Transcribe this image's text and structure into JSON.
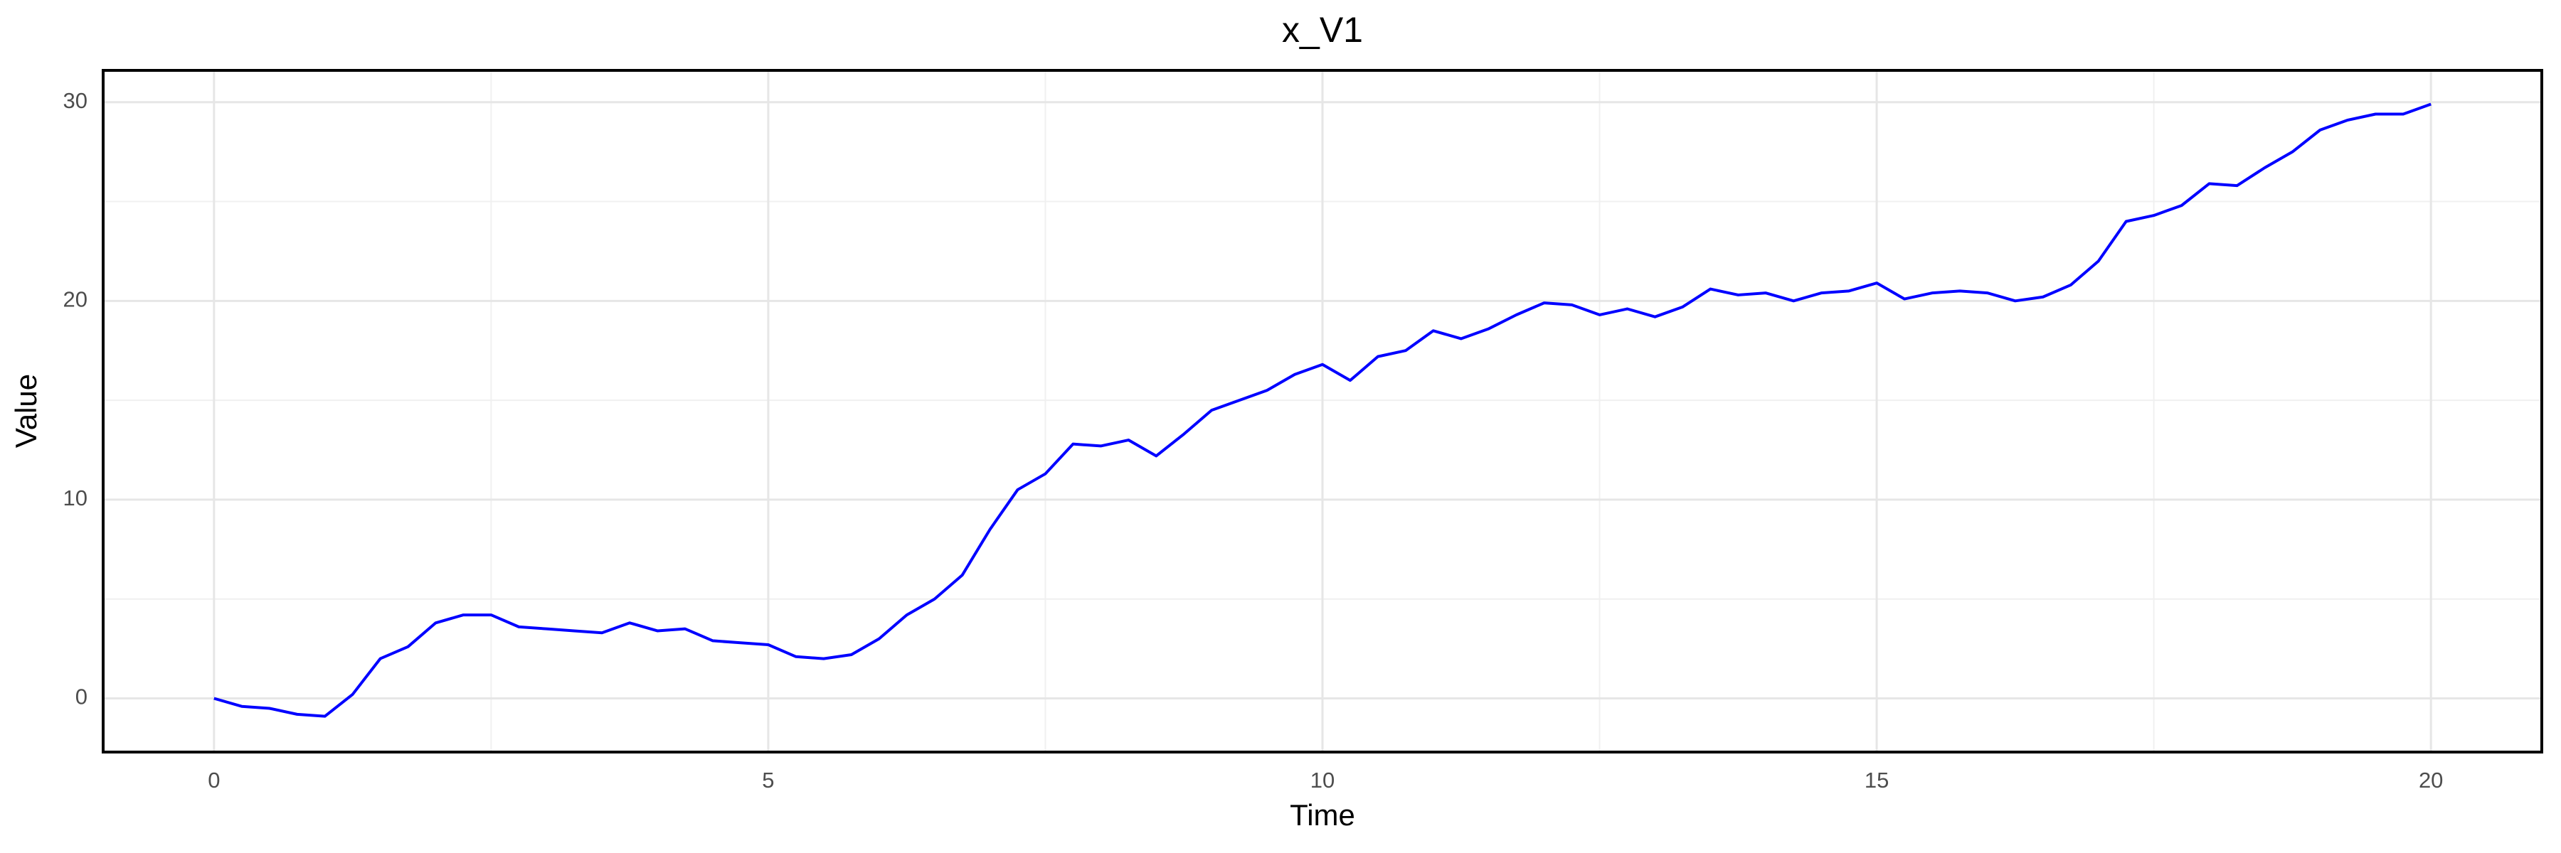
{
  "chart_data": {
    "type": "line",
    "title": "x_V1",
    "x_label": "Time",
    "y_label": "Value",
    "x": [
      0,
      0.25,
      0.5,
      0.75,
      1,
      1.25,
      1.5,
      1.75,
      2,
      2.25,
      2.5,
      2.75,
      3,
      3.25,
      3.5,
      3.75,
      4,
      4.25,
      4.5,
      4.75,
      5,
      5.25,
      5.5,
      5.75,
      6,
      6.25,
      6.5,
      6.75,
      7,
      7.25,
      7.5,
      7.75,
      8,
      8.25,
      8.5,
      8.75,
      9,
      9.25,
      9.5,
      9.75,
      10,
      10.25,
      10.5,
      10.75,
      11,
      11.25,
      11.5,
      11.75,
      12,
      12.25,
      12.5,
      12.75,
      13,
      13.25,
      13.5,
      13.75,
      14,
      14.25,
      14.5,
      14.75,
      15,
      15.25,
      15.5,
      15.75,
      16,
      16.25,
      16.5,
      16.75,
      17,
      17.25,
      17.5,
      17.75,
      18,
      18.25,
      18.5,
      18.75,
      19,
      19.25,
      19.5,
      19.75,
      20
    ],
    "series": [
      {
        "name": "x_V1",
        "color": "#0000ff",
        "values": [
          0,
          -0.4,
          -0.5,
          -0.8,
          -0.9,
          0.2,
          2.0,
          2.6,
          3.8,
          4.2,
          4.2,
          3.6,
          3.5,
          3.4,
          3.3,
          3.8,
          3.4,
          3.5,
          2.9,
          2.8,
          2.7,
          2.1,
          2.0,
          2.2,
          3.0,
          4.2,
          5.0,
          6.2,
          8.5,
          10.5,
          11.3,
          12.8,
          12.7,
          13.0,
          12.2,
          13.3,
          14.5,
          15.0,
          15.5,
          16.3,
          16.8,
          16.0,
          17.2,
          17.5,
          18.5,
          18.1,
          18.6,
          19.3,
          19.9,
          19.8,
          19.3,
          19.6,
          19.2,
          19.7,
          20.6,
          20.3,
          20.4,
          20.0,
          20.4,
          20.5,
          20.9,
          20.1,
          20.4,
          20.5,
          20.4,
          20.0,
          20.2,
          20.8,
          22.0,
          24.0,
          24.3,
          24.8,
          25.9,
          25.8,
          26.7,
          27.5,
          28.6,
          29.1,
          29.4,
          29.4,
          29.9
        ]
      }
    ],
    "xlim": [
      -1,
      21
    ],
    "ylim": [
      -2.7,
      31.6
    ],
    "xticks": [
      0,
      5,
      10,
      15,
      20
    ],
    "yticks": [
      0,
      10,
      20,
      30
    ],
    "grid": true
  }
}
